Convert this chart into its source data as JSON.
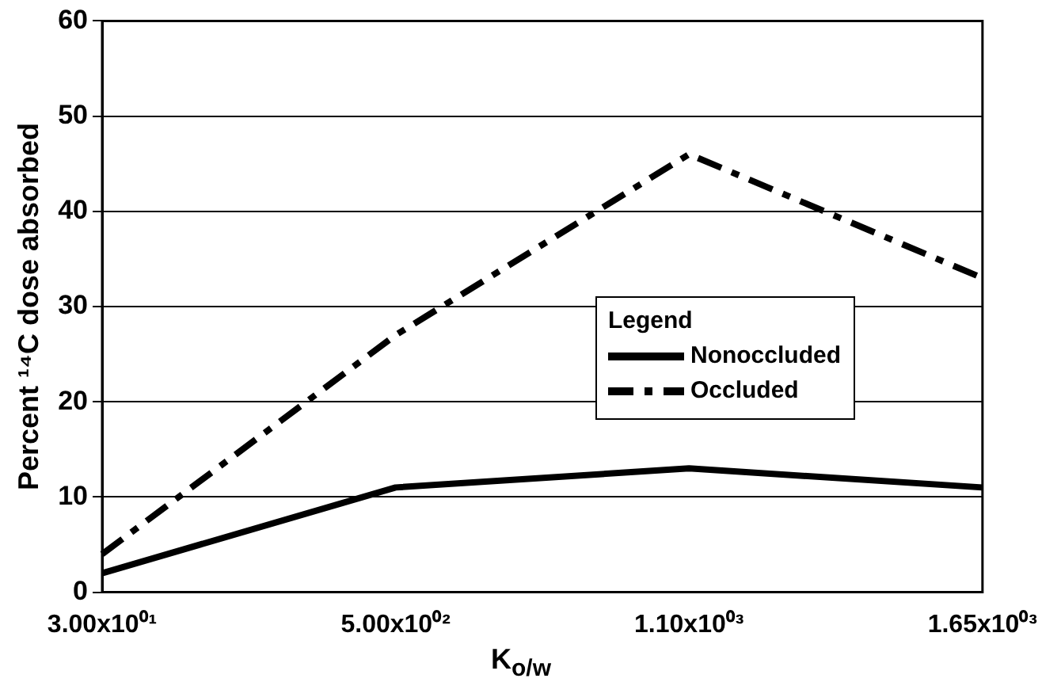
{
  "chart_data": {
    "type": "line",
    "xlabel": "K$_{o/w}$",
    "ylabel": "Percent ¹⁴C dose absorbed",
    "legend_title": "Legend",
    "categories": [
      "3.00x10⁰¹",
      "5.00x10⁰²",
      "1.10x10⁰³",
      "1.65x10⁰³"
    ],
    "series": [
      {
        "name": "Nonoccluded",
        "color": "#000000",
        "values": [
          2,
          11,
          13,
          11
        ],
        "line_style": "solid"
      },
      {
        "name": "Occluded",
        "color": "#000000",
        "values": [
          4,
          27,
          46,
          33
        ],
        "line_style": "dashed"
      }
    ],
    "ylim": [
      0,
      60
    ],
    "yticks": [
      0,
      10,
      20,
      30,
      40,
      50,
      60
    ],
    "grid": "y",
    "legend": "right",
    "marker": "none"
  }
}
